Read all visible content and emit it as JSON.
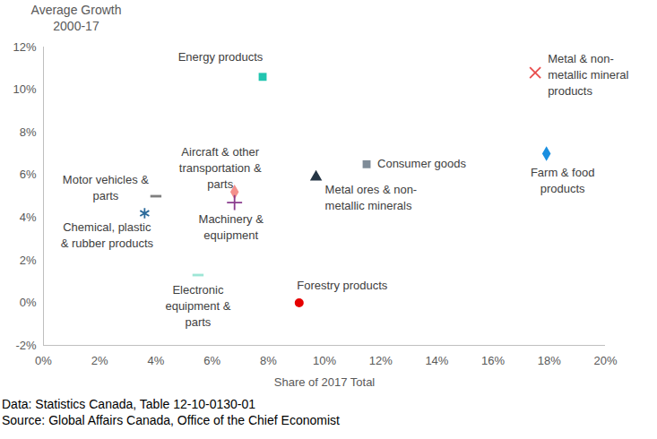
{
  "chart_data": {
    "type": "scatter",
    "y_label": "Average Growth 2000-17",
    "x_label": "Share of 2017 Total",
    "caption": [
      "Data: Statistics Canada, Table 12-10-0130-01",
      "Source: Global Affairs Canada, Office of the Chief Economist"
    ],
    "series": [
      {
        "name": "Energy products",
        "x": [
          7.8
        ],
        "values": [
          10.6
        ],
        "color": "#22c5b0",
        "marker": "square"
      },
      {
        "name": "Metal & non-metallic mineral products",
        "x": [
          17.5
        ],
        "values": [
          10.8
        ],
        "color": "#e84c4c",
        "marker": "times"
      },
      {
        "name": "Consumer goods",
        "x": [
          11.5
        ],
        "values": [
          6.5
        ],
        "color": "#7f8c98",
        "marker": "square"
      },
      {
        "name": "Farm & food products",
        "x": [
          17.9
        ],
        "values": [
          7.0
        ],
        "color": "#1a8fe0",
        "marker": "diamond"
      },
      {
        "name": "Metal ores & non-metallic minerals",
        "x": [
          9.7
        ],
        "values": [
          5.9
        ],
        "color": "#253545",
        "marker": "triangle"
      },
      {
        "name": "Aircraft & other transportation & parts",
        "x": [
          6.8
        ],
        "values": [
          5.2
        ],
        "color": "#f4908c",
        "marker": "diamond"
      },
      {
        "name": "Machinery & equipment",
        "x": [
          6.8
        ],
        "values": [
          4.7
        ],
        "color": "#8a3c8e",
        "marker": "plus"
      },
      {
        "name": "Motor vehicles & parts",
        "x": [
          4.0
        ],
        "values": [
          5.0
        ],
        "color": "#7f7f7f",
        "marker": "dash"
      },
      {
        "name": "Chemical, plastic & rubber products",
        "x": [
          3.6
        ],
        "values": [
          4.2
        ],
        "color": "#2b6a9a",
        "marker": "asterisk"
      },
      {
        "name": "Electronic equipment & parts",
        "x": [
          5.5
        ],
        "values": [
          1.3
        ],
        "color": "#9ee6d6",
        "marker": "dash"
      },
      {
        "name": "Forestry products",
        "x": [
          9.1
        ],
        "values": [
          0.0
        ],
        "color": "#e60000",
        "marker": "circle"
      }
    ],
    "xlim": [
      0,
      20
    ],
    "xticks": [
      {
        "value": 0,
        "label": "0%"
      },
      {
        "value": 2,
        "label": "2%"
      },
      {
        "value": 4,
        "label": "4%"
      },
      {
        "value": 6,
        "label": "6%"
      },
      {
        "value": 8,
        "label": "8%"
      },
      {
        "value": 10,
        "label": "10%"
      },
      {
        "value": 12,
        "label": "12%"
      },
      {
        "value": 14,
        "label": "14%"
      },
      {
        "value": 16,
        "label": "16%"
      },
      {
        "value": 18,
        "label": "18%"
      },
      {
        "value": 20,
        "label": "20%"
      }
    ],
    "ylim": [
      -2,
      12
    ],
    "yticks": [
      {
        "value": -2,
        "label": "-2%"
      },
      {
        "value": 0,
        "label": "0%"
      },
      {
        "value": 2,
        "label": "2%"
      },
      {
        "value": 4,
        "label": "4%"
      },
      {
        "value": 6,
        "label": "6%"
      },
      {
        "value": 8,
        "label": "8%"
      },
      {
        "value": 10,
        "label": "10%"
      },
      {
        "value": 12,
        "label": "12%"
      }
    ],
    "grid": false
  }
}
